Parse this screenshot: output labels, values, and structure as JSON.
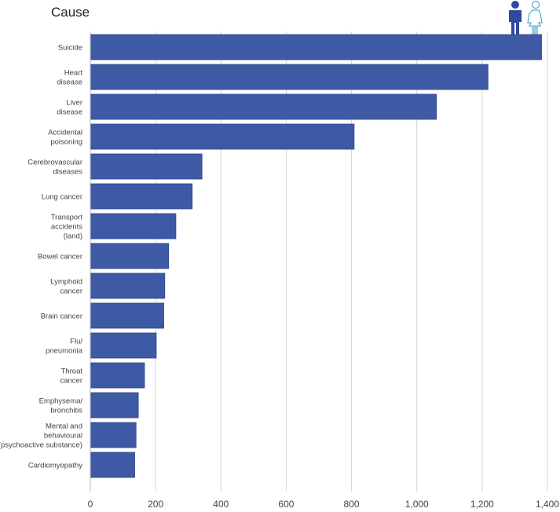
{
  "header": {
    "title": "Cause"
  },
  "gender_toggle": {
    "male_icon": "male-person-icon",
    "female_icon": "female-person-icon",
    "selected": "male",
    "male_color": "#2e4a9e",
    "female_color": "#5aa6c8"
  },
  "chart_data": {
    "type": "bar",
    "orientation": "horizontal",
    "title": "Cause",
    "xlabel": "",
    "ylabel": "",
    "xlim": [
      0,
      1400
    ],
    "x_ticks": [
      0,
      200,
      400,
      600,
      800,
      1000,
      1200,
      1400
    ],
    "x_tick_labels": [
      "0",
      "200",
      "400",
      "600",
      "800",
      "1,000",
      "1,200",
      "1,400"
    ],
    "grid": true,
    "bar_color": "#3f5aa5",
    "categories": [
      [
        "Suicide"
      ],
      [
        "Heart",
        "disease"
      ],
      [
        "Liver",
        "disease"
      ],
      [
        "Accidental",
        "poisoning"
      ],
      [
        "Cerebrovascular",
        "diseases"
      ],
      [
        "Lung cancer"
      ],
      [
        "Transport",
        "accidents",
        "(land)"
      ],
      [
        "Bowel cancer"
      ],
      [
        "Lymphoid",
        "cancer"
      ],
      [
        "Brain cancer"
      ],
      [
        "Flu/",
        "pneumonia"
      ],
      [
        "Throat",
        "cancer"
      ],
      [
        "Emphysema/",
        "bronchitis"
      ],
      [
        "Mental and",
        "behavioural",
        "(psychoactive substance)"
      ],
      [
        "Cardiomyopathy"
      ]
    ],
    "values": [
      1382,
      1218,
      1060,
      808,
      342,
      312,
      262,
      240,
      228,
      225,
      202,
      166,
      147,
      140,
      136
    ]
  }
}
